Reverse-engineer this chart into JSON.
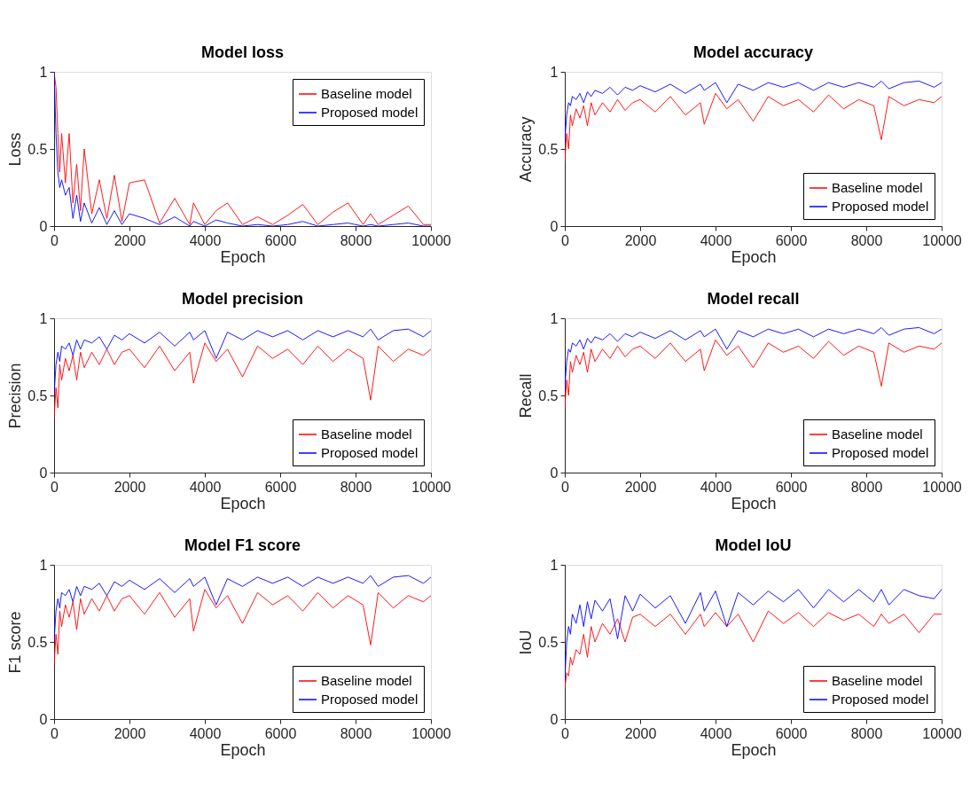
{
  "chart_data": [
    {
      "type": "line",
      "title": "Model loss",
      "xlabel": "Epoch",
      "ylabel": "Loss",
      "xlim": [
        0,
        10000
      ],
      "xticks": [
        0,
        2000,
        4000,
        6000,
        8000,
        10000
      ],
      "ylim": [
        0,
        1
      ],
      "yticks": [
        0,
        0.5,
        1
      ],
      "grid": false,
      "legend": "top right",
      "marker": "none",
      "line_style": "solid",
      "x": [
        0,
        50,
        100,
        150,
        200,
        300,
        400,
        500,
        600,
        700,
        800,
        1000,
        1200,
        1400,
        1600,
        1800,
        2000,
        2400,
        2800,
        3200,
        3600,
        3700,
        4000,
        4300,
        4600,
        5000,
        5400,
        5800,
        6200,
        6600,
        7000,
        7400,
        7800,
        8200,
        8400,
        8600,
        9000,
        9400,
        9800,
        10000
      ],
      "series": [
        {
          "name": "Baseline model",
          "color": "#ff0000",
          "values": [
            1.0,
            0.9,
            0.6,
            0.35,
            0.6,
            0.28,
            0.6,
            0.15,
            0.4,
            0.1,
            0.5,
            0.08,
            0.3,
            0.05,
            0.33,
            0.03,
            0.28,
            0.3,
            0.02,
            0.18,
            0.01,
            0.15,
            0.01,
            0.1,
            0.15,
            0.01,
            0.06,
            0.01,
            0.07,
            0.14,
            0.01,
            0.09,
            0.15,
            0.01,
            0.08,
            0.01,
            0.07,
            0.13,
            0.01,
            0.01
          ]
        },
        {
          "name": "Proposed model",
          "color": "#0000ff",
          "values": [
            1.0,
            0.6,
            0.35,
            0.25,
            0.3,
            0.2,
            0.25,
            0.05,
            0.2,
            0.03,
            0.15,
            0.02,
            0.12,
            0.01,
            0.1,
            0.01,
            0.08,
            0.05,
            0.01,
            0.06,
            0.0,
            0.03,
            0.0,
            0.04,
            0.02,
            0.0,
            0.01,
            0.0,
            0.01,
            0.03,
            0.0,
            0.01,
            0.02,
            0.0,
            0.01,
            0.0,
            0.01,
            0.02,
            0.0,
            0.0
          ]
        }
      ]
    },
    {
      "type": "line",
      "title": "Model accuracy",
      "xlabel": "Epoch",
      "ylabel": "Accuracy",
      "xlim": [
        0,
        10000
      ],
      "xticks": [
        0,
        2000,
        4000,
        6000,
        8000,
        10000
      ],
      "ylim": [
        0,
        1
      ],
      "yticks": [
        0,
        0.5,
        1
      ],
      "grid": false,
      "legend": "bottom right",
      "marker": "none",
      "line_style": "solid",
      "x": [
        0,
        50,
        100,
        150,
        200,
        300,
        400,
        500,
        600,
        700,
        800,
        1000,
        1200,
        1400,
        1600,
        1800,
        2000,
        2400,
        2800,
        3200,
        3600,
        3700,
        4000,
        4300,
        4600,
        5000,
        5400,
        5800,
        6200,
        6600,
        7000,
        7400,
        7800,
        8200,
        8400,
        8600,
        9000,
        9400,
        9800,
        10000
      ],
      "series": [
        {
          "name": "Baseline model",
          "color": "#ff0000",
          "values": [
            0.42,
            0.6,
            0.5,
            0.72,
            0.65,
            0.76,
            0.7,
            0.78,
            0.65,
            0.8,
            0.72,
            0.8,
            0.74,
            0.82,
            0.75,
            0.8,
            0.82,
            0.74,
            0.84,
            0.72,
            0.8,
            0.66,
            0.86,
            0.76,
            0.82,
            0.68,
            0.84,
            0.78,
            0.82,
            0.74,
            0.85,
            0.76,
            0.82,
            0.78,
            0.56,
            0.84,
            0.78,
            0.82,
            0.8,
            0.84
          ]
        },
        {
          "name": "Proposed model",
          "color": "#0000ff",
          "values": [
            0.55,
            0.72,
            0.8,
            0.78,
            0.84,
            0.82,
            0.86,
            0.8,
            0.87,
            0.84,
            0.88,
            0.86,
            0.9,
            0.85,
            0.9,
            0.88,
            0.91,
            0.87,
            0.92,
            0.86,
            0.92,
            0.88,
            0.93,
            0.8,
            0.92,
            0.88,
            0.93,
            0.9,
            0.93,
            0.88,
            0.93,
            0.9,
            0.93,
            0.9,
            0.94,
            0.89,
            0.93,
            0.94,
            0.9,
            0.93
          ]
        }
      ]
    },
    {
      "type": "line",
      "title": "Model precision",
      "xlabel": "Epoch",
      "ylabel": "Precision",
      "xlim": [
        0,
        10000
      ],
      "xticks": [
        0,
        2000,
        4000,
        6000,
        8000,
        10000
      ],
      "ylim": [
        0,
        1
      ],
      "yticks": [
        0,
        0.5,
        1
      ],
      "grid": false,
      "legend": "bottom right",
      "marker": "none",
      "line_style": "solid",
      "x": [
        0,
        50,
        100,
        150,
        200,
        300,
        400,
        500,
        600,
        700,
        800,
        1000,
        1200,
        1400,
        1600,
        1800,
        2000,
        2400,
        2800,
        3200,
        3600,
        3700,
        4000,
        4300,
        4600,
        5000,
        5400,
        5800,
        6200,
        6600,
        7000,
        7400,
        7800,
        8200,
        8400,
        8600,
        9000,
        9400,
        9800,
        10000
      ],
      "series": [
        {
          "name": "Baseline model",
          "color": "#ff0000",
          "values": [
            0.35,
            0.55,
            0.42,
            0.7,
            0.6,
            0.74,
            0.66,
            0.76,
            0.6,
            0.78,
            0.68,
            0.78,
            0.7,
            0.8,
            0.7,
            0.78,
            0.8,
            0.68,
            0.82,
            0.66,
            0.78,
            0.58,
            0.84,
            0.72,
            0.8,
            0.62,
            0.82,
            0.74,
            0.8,
            0.7,
            0.82,
            0.72,
            0.8,
            0.74,
            0.47,
            0.82,
            0.72,
            0.8,
            0.76,
            0.8
          ]
        },
        {
          "name": "Proposed model",
          "color": "#0000ff",
          "values": [
            0.5,
            0.7,
            0.78,
            0.72,
            0.82,
            0.8,
            0.84,
            0.76,
            0.86,
            0.8,
            0.86,
            0.84,
            0.88,
            0.8,
            0.89,
            0.86,
            0.9,
            0.84,
            0.91,
            0.82,
            0.91,
            0.86,
            0.92,
            0.74,
            0.91,
            0.86,
            0.92,
            0.88,
            0.92,
            0.86,
            0.92,
            0.88,
            0.92,
            0.88,
            0.93,
            0.86,
            0.92,
            0.93,
            0.88,
            0.92
          ]
        }
      ]
    },
    {
      "type": "line",
      "title": "Model recall",
      "xlabel": "Epoch",
      "ylabel": "Recall",
      "xlim": [
        0,
        10000
      ],
      "xticks": [
        0,
        2000,
        4000,
        6000,
        8000,
        10000
      ],
      "ylim": [
        0,
        1
      ],
      "yticks": [
        0,
        0.5,
        1
      ],
      "grid": false,
      "legend": "bottom right",
      "marker": "none",
      "line_style": "solid",
      "x": [
        0,
        50,
        100,
        150,
        200,
        300,
        400,
        500,
        600,
        700,
        800,
        1000,
        1200,
        1400,
        1600,
        1800,
        2000,
        2400,
        2800,
        3200,
        3600,
        3700,
        4000,
        4300,
        4600,
        5000,
        5400,
        5800,
        6200,
        6600,
        7000,
        7400,
        7800,
        8200,
        8400,
        8600,
        9000,
        9400,
        9800,
        10000
      ],
      "series": [
        {
          "name": "Baseline model",
          "color": "#ff0000",
          "values": [
            0.42,
            0.6,
            0.5,
            0.72,
            0.65,
            0.76,
            0.7,
            0.78,
            0.65,
            0.8,
            0.72,
            0.8,
            0.74,
            0.82,
            0.75,
            0.8,
            0.82,
            0.74,
            0.84,
            0.72,
            0.8,
            0.66,
            0.86,
            0.76,
            0.82,
            0.68,
            0.84,
            0.78,
            0.82,
            0.74,
            0.85,
            0.76,
            0.82,
            0.78,
            0.56,
            0.84,
            0.78,
            0.82,
            0.8,
            0.84
          ]
        },
        {
          "name": "Proposed model",
          "color": "#0000ff",
          "values": [
            0.55,
            0.72,
            0.8,
            0.78,
            0.84,
            0.82,
            0.86,
            0.8,
            0.87,
            0.84,
            0.88,
            0.86,
            0.9,
            0.85,
            0.9,
            0.88,
            0.91,
            0.87,
            0.92,
            0.86,
            0.92,
            0.88,
            0.93,
            0.8,
            0.92,
            0.88,
            0.93,
            0.9,
            0.93,
            0.88,
            0.93,
            0.9,
            0.93,
            0.9,
            0.94,
            0.89,
            0.93,
            0.94,
            0.9,
            0.93
          ]
        }
      ]
    },
    {
      "type": "line",
      "title": "Model F1 score",
      "xlabel": "Epoch",
      "ylabel": "F1 score",
      "xlim": [
        0,
        10000
      ],
      "xticks": [
        0,
        2000,
        4000,
        6000,
        8000,
        10000
      ],
      "ylim": [
        0,
        1
      ],
      "yticks": [
        0,
        0.5,
        1
      ],
      "grid": false,
      "legend": "bottom right",
      "marker": "none",
      "line_style": "solid",
      "x": [
        0,
        50,
        100,
        150,
        200,
        300,
        400,
        500,
        600,
        700,
        800,
        1000,
        1200,
        1400,
        1600,
        1800,
        2000,
        2400,
        2800,
        3200,
        3600,
        3700,
        4000,
        4300,
        4600,
        5000,
        5400,
        5800,
        6200,
        6600,
        7000,
        7400,
        7800,
        8200,
        8400,
        8600,
        9000,
        9400,
        9800,
        10000
      ],
      "series": [
        {
          "name": "Baseline model",
          "color": "#ff0000",
          "values": [
            0.35,
            0.55,
            0.42,
            0.7,
            0.6,
            0.74,
            0.66,
            0.76,
            0.58,
            0.78,
            0.68,
            0.78,
            0.7,
            0.8,
            0.7,
            0.78,
            0.8,
            0.68,
            0.82,
            0.66,
            0.78,
            0.57,
            0.84,
            0.72,
            0.8,
            0.62,
            0.82,
            0.74,
            0.8,
            0.7,
            0.82,
            0.72,
            0.8,
            0.74,
            0.48,
            0.82,
            0.72,
            0.8,
            0.76,
            0.8
          ]
        },
        {
          "name": "Proposed model",
          "color": "#0000ff",
          "values": [
            0.5,
            0.7,
            0.78,
            0.72,
            0.82,
            0.8,
            0.84,
            0.76,
            0.86,
            0.8,
            0.86,
            0.84,
            0.88,
            0.8,
            0.89,
            0.86,
            0.9,
            0.84,
            0.91,
            0.82,
            0.91,
            0.86,
            0.92,
            0.74,
            0.91,
            0.86,
            0.92,
            0.88,
            0.92,
            0.86,
            0.92,
            0.88,
            0.92,
            0.88,
            0.93,
            0.86,
            0.92,
            0.93,
            0.88,
            0.92
          ]
        }
      ]
    },
    {
      "type": "line",
      "title": "Model IoU",
      "xlabel": "Epoch",
      "ylabel": "IoU",
      "xlim": [
        0,
        10000
      ],
      "xticks": [
        0,
        2000,
        4000,
        6000,
        8000,
        10000
      ],
      "ylim": [
        0,
        1
      ],
      "yticks": [
        0,
        0.5,
        1
      ],
      "grid": false,
      "legend": "bottom right",
      "marker": "none",
      "line_style": "solid",
      "x": [
        0,
        50,
        100,
        150,
        200,
        300,
        400,
        500,
        600,
        700,
        800,
        1000,
        1200,
        1400,
        1600,
        1800,
        2000,
        2400,
        2800,
        3200,
        3600,
        3700,
        4000,
        4300,
        4600,
        5000,
        5400,
        5800,
        6200,
        6600,
        7000,
        7400,
        7800,
        8200,
        8400,
        8600,
        9000,
        9400,
        9800,
        10000
      ],
      "series": [
        {
          "name": "Baseline model",
          "color": "#ff0000",
          "values": [
            0.2,
            0.3,
            0.28,
            0.4,
            0.35,
            0.45,
            0.42,
            0.55,
            0.4,
            0.6,
            0.5,
            0.62,
            0.55,
            0.65,
            0.5,
            0.66,
            0.68,
            0.6,
            0.68,
            0.55,
            0.68,
            0.6,
            0.69,
            0.6,
            0.68,
            0.5,
            0.7,
            0.62,
            0.69,
            0.6,
            0.69,
            0.64,
            0.68,
            0.6,
            0.68,
            0.62,
            0.68,
            0.56,
            0.68,
            0.68
          ]
        },
        {
          "name": "Proposed model",
          "color": "#0000ff",
          "values": [
            0.25,
            0.5,
            0.6,
            0.55,
            0.68,
            0.62,
            0.74,
            0.6,
            0.76,
            0.65,
            0.77,
            0.7,
            0.78,
            0.52,
            0.8,
            0.7,
            0.81,
            0.72,
            0.8,
            0.62,
            0.82,
            0.7,
            0.83,
            0.6,
            0.82,
            0.74,
            0.83,
            0.76,
            0.84,
            0.72,
            0.84,
            0.76,
            0.84,
            0.76,
            0.84,
            0.74,
            0.84,
            0.8,
            0.78,
            0.84
          ]
        }
      ]
    }
  ]
}
